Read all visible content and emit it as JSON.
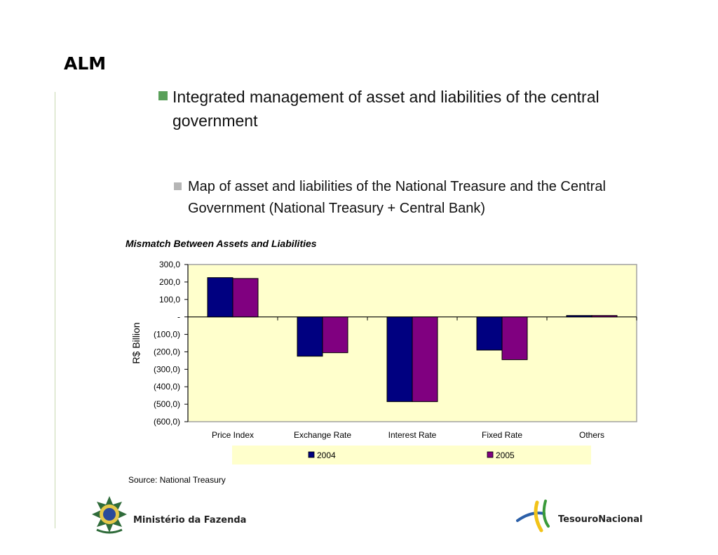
{
  "slide": {
    "title": "ALM",
    "bullet_1": "Integrated management of asset and liabilities of the central government",
    "bullet_2": "Map of asset and liabilities of the National Treasure and the Central Government (National Treasury + Central Bank)",
    "source": "Source: National Treasury"
  },
  "footer": {
    "left_label": "Ministério da Fazenda",
    "right_label": "TesouroNacional"
  },
  "colors": {
    "plot_background": "#ffffcc",
    "series_2004": "#000080",
    "series_2005": "#800080",
    "bullet_primary": "#5aa05a",
    "bullet_secondary": "#b5b5b5"
  },
  "chart_data": {
    "type": "bar",
    "title": "Mismatch Between Assets and Liabilities",
    "xlabel": "",
    "ylabel": "R$ Billion",
    "categories": [
      "Price Index",
      "Exchange Rate",
      "Interest Rate",
      "Fixed Rate",
      "Others"
    ],
    "series": [
      {
        "name": "2004",
        "values": [
          225,
          -225,
          -485,
          -190,
          8
        ]
      },
      {
        "name": "2005",
        "values": [
          220,
          -205,
          -485,
          -245,
          8
        ]
      }
    ],
    "ylim": [
      -600,
      300
    ],
    "yticks": [
      300,
      200,
      100,
      0,
      -100,
      -200,
      -300,
      -400,
      -500,
      -600
    ],
    "ytick_labels": [
      "300,0",
      "200,0",
      "100,0",
      "-",
      "(100,0)",
      "(200,0)",
      "(300,0)",
      "(400,0)",
      "(500,0)",
      "(600,0)"
    ],
    "grid": false,
    "legend_position": "bottom"
  }
}
